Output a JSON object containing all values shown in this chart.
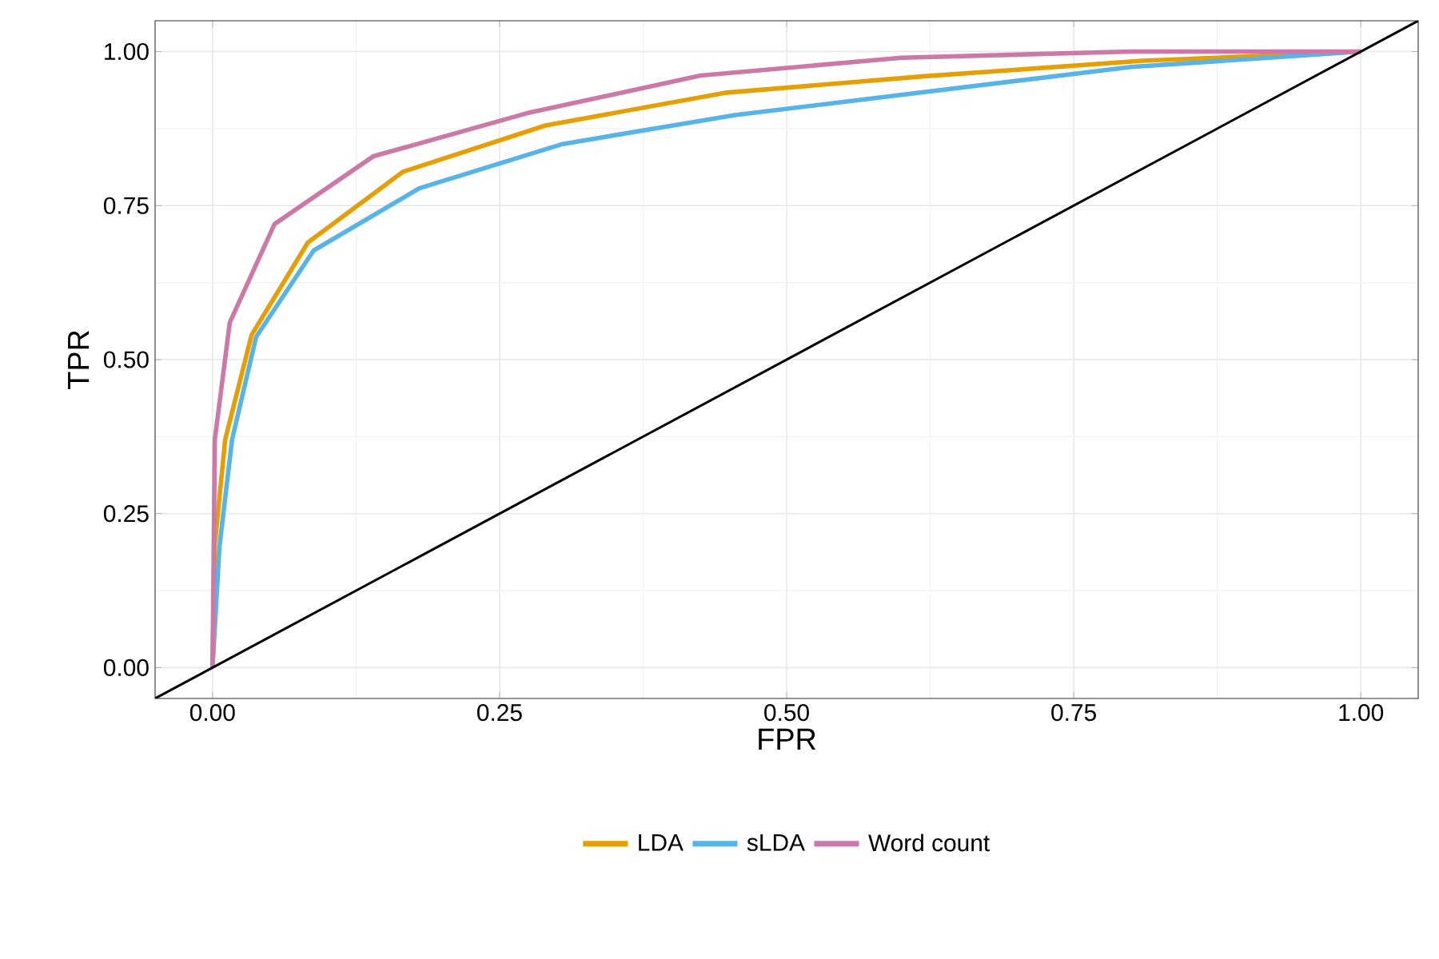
{
  "chart_data": {
    "type": "line",
    "xlabel": "FPR",
    "ylabel": "TPR",
    "xlim": [
      -0.05,
      1.05
    ],
    "ylim": [
      -0.05,
      1.05
    ],
    "xticks": [
      {
        "value": 0,
        "label": "0.00"
      },
      {
        "value": 0.25,
        "label": "0.25"
      },
      {
        "value": 0.5,
        "label": "0.50"
      },
      {
        "value": 0.75,
        "label": "0.75"
      },
      {
        "value": 1,
        "label": "1.00"
      }
    ],
    "yticks": [
      {
        "value": 0,
        "label": "0.00"
      },
      {
        "value": 0.25,
        "label": "0.25"
      },
      {
        "value": 0.5,
        "label": "0.50"
      },
      {
        "value": 0.75,
        "label": "0.75"
      },
      {
        "value": 1,
        "label": "1.00"
      }
    ],
    "grid": true,
    "legend": "bottom",
    "line_style": "solid",
    "series": [
      {
        "name": "LDA",
        "color": "#e69f00",
        "x": [
          0,
          0.002,
          0.011,
          0.034,
          0.083,
          0.166,
          0.29,
          0.446,
          0.62,
          0.81,
          1
        ],
        "values": [
          0,
          0.2,
          0.37,
          0.54,
          0.69,
          0.805,
          0.88,
          0.933,
          0.96,
          0.985,
          1
        ]
      },
      {
        "name": "sLDA",
        "color": "#56b4e9",
        "x": [
          0,
          0.006,
          0.017,
          0.038,
          0.088,
          0.18,
          0.305,
          0.455,
          0.8,
          1
        ],
        "values": [
          0,
          0.196,
          0.37,
          0.537,
          0.677,
          0.778,
          0.85,
          0.897,
          0.975,
          1
        ]
      },
      {
        "name": "Word count",
        "color": "#cc79a7",
        "x": [
          0,
          0.002,
          0.015,
          0.054,
          0.14,
          0.274,
          0.425,
          0.6,
          0.8,
          1
        ],
        "values": [
          0,
          0.37,
          0.56,
          0.72,
          0.83,
          0.9,
          0.961,
          0.99,
          1,
          1
        ]
      },
      {
        "color": "#000000",
        "x": [
          -0.05,
          1.05
        ],
        "values": [
          -0.05,
          1.05
        ]
      }
    ]
  }
}
